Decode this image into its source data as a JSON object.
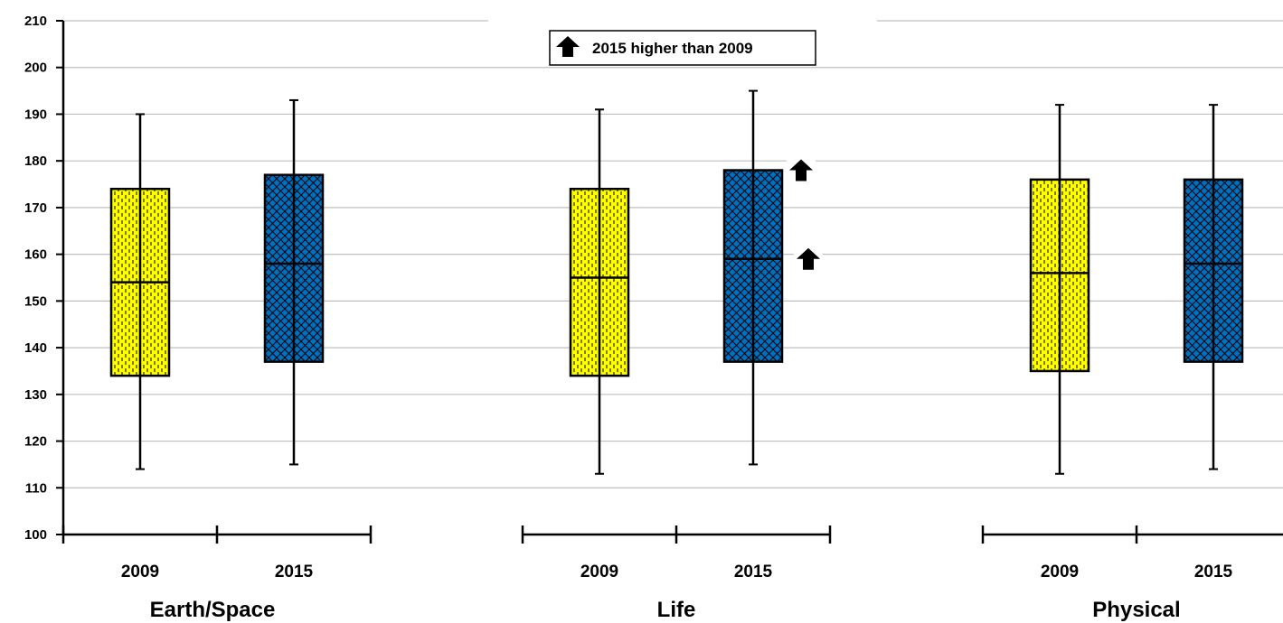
{
  "chart_data": {
    "type": "box",
    "yaxis": {
      "min": 100,
      "max": 210,
      "ticks": [
        100,
        110,
        120,
        130,
        140,
        150,
        160,
        170,
        180,
        190,
        200,
        210
      ]
    },
    "grid": true,
    "legend": {
      "label": "2015 higher than 2009",
      "placement": "top-center",
      "icon": "up-arrow-icon"
    },
    "colors": {
      "2009": "#ffff00",
      "2015": "#0070c0",
      "stroke": "#000000",
      "grid": "#bfbfbf"
    },
    "groups": [
      {
        "name": "Earth/Space",
        "boxes": [
          {
            "category": "2009",
            "whisker_low": 114,
            "q1": 134,
            "median": 154,
            "q3": 174,
            "whisker_high": 190
          },
          {
            "category": "2015",
            "whisker_low": 115,
            "q1": 137,
            "median": 158,
            "q3": 177,
            "whisker_high": 193
          }
        ]
      },
      {
        "name": "Life",
        "boxes": [
          {
            "category": "2009",
            "whisker_low": 113,
            "q1": 134,
            "median": 155,
            "q3": 174,
            "whisker_high": 191
          },
          {
            "category": "2015",
            "whisker_low": 115,
            "q1": 137,
            "median": 159,
            "q3": 178,
            "whisker_high": 195,
            "higher_marks": [
              "q3",
              "median"
            ]
          }
        ]
      },
      {
        "name": "Physical",
        "boxes": [
          {
            "category": "2009",
            "whisker_low": 113,
            "q1": 135,
            "median": 156,
            "q3": 176,
            "whisker_high": 192
          },
          {
            "category": "2015",
            "whisker_low": 114,
            "q1": 137,
            "median": 158,
            "q3": 176,
            "whisker_high": 192
          }
        ]
      }
    ]
  }
}
